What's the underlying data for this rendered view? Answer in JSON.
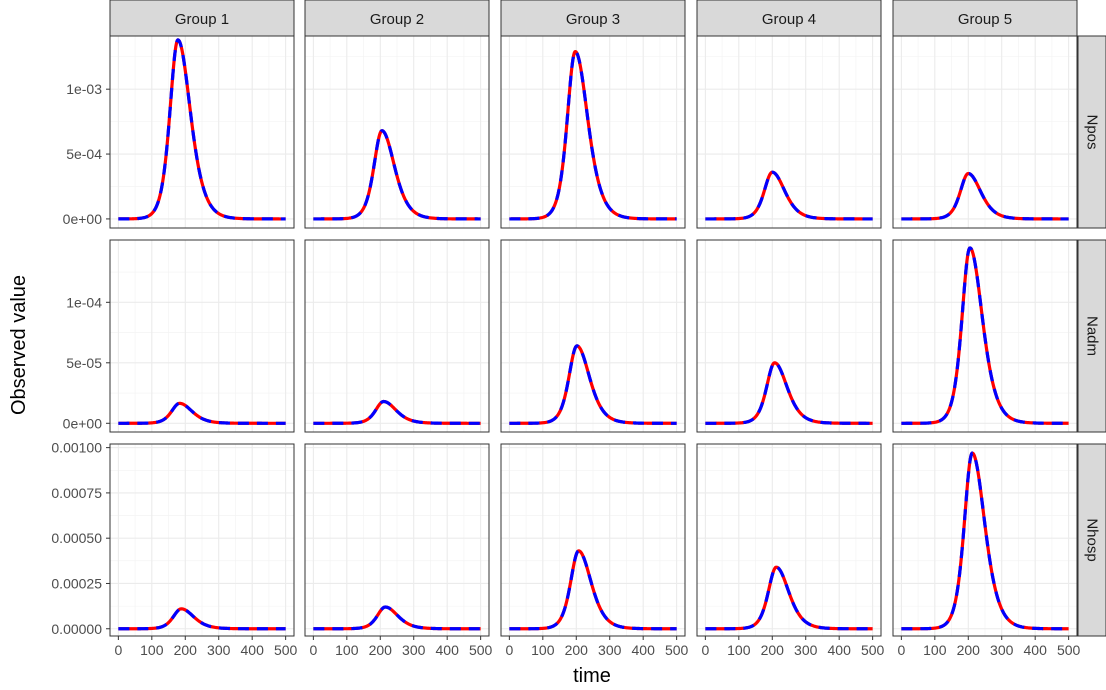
{
  "chart_data": {
    "type": "line",
    "title": "",
    "xlabel": "time",
    "ylabel": "Observed value",
    "columns": [
      "Group 1",
      "Group 2",
      "Group 3",
      "Group 4",
      "Group 5"
    ],
    "rows": [
      "Npos",
      "Nadm",
      "Nhosp"
    ],
    "xlim": [
      0,
      500
    ],
    "x_ticks": [
      0,
      100,
      200,
      300,
      400,
      500
    ],
    "x_tick_labels": [
      "0",
      "100",
      "200",
      "300",
      "400",
      "500"
    ],
    "grid": true,
    "series_style": [
      {
        "color": "#ff0000",
        "dash": "solid"
      },
      {
        "color": "#0000ff",
        "dash": "dashed"
      }
    ],
    "panel_rows": [
      {
        "strip": "Npos",
        "ylim": [
          -7e-05,
          0.00141
        ],
        "y_ticks": [
          0,
          0.0005,
          0.001
        ],
        "y_tick_labels": [
          "0e+00",
          "5e-04",
          "1e-03"
        ],
        "peaks": [
          {
            "x": 178,
            "y": 0.00138
          },
          {
            "x": 205,
            "y": 0.00068
          },
          {
            "x": 197,
            "y": 0.00129
          },
          {
            "x": 200,
            "y": 0.00036
          },
          {
            "x": 200,
            "y": 0.00035
          }
        ]
      },
      {
        "strip": "Nadm",
        "ylim": [
          -7.2e-06,
          0.0001515
        ],
        "y_ticks": [
          0,
          5e-05,
          0.0001
        ],
        "y_tick_labels": [
          "0e+00",
          "5e-05",
          "1e-04"
        ],
        "peaks": [
          {
            "x": 183,
            "y": 1.65e-05
          },
          {
            "x": 210,
            "y": 1.8e-05
          },
          {
            "x": 202,
            "y": 6.4e-05
          },
          {
            "x": 207,
            "y": 5e-05
          },
          {
            "x": 205,
            "y": 0.000145
          }
        ]
      },
      {
        "strip": "Nhosp",
        "ylim": [
          -4e-05,
          0.00102
        ],
        "y_ticks": [
          0,
          0.00025,
          0.0005,
          0.00075,
          0.001
        ],
        "y_tick_labels": [
          "0.00000",
          "0.00025",
          "0.00050",
          "0.00075",
          "0.00100"
        ],
        "peaks": [
          {
            "x": 188,
            "y": 0.00011
          },
          {
            "x": 215,
            "y": 0.00012
          },
          {
            "x": 207,
            "y": 0.00043
          },
          {
            "x": 212,
            "y": 0.00034
          },
          {
            "x": 212,
            "y": 0.00097
          }
        ]
      }
    ],
    "curve_widths": {
      "left": 32,
      "right": 50
    }
  }
}
